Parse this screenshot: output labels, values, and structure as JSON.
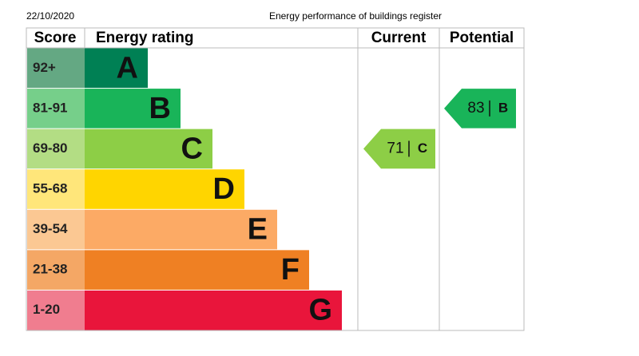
{
  "header": {
    "date": "22/10/2020",
    "title": "Energy performance of buildings register"
  },
  "table": {
    "columns": [
      "Score",
      "Energy rating",
      "Current",
      "Potential"
    ],
    "bands": [
      {
        "score": "92+",
        "rating": "A",
        "color": "#008054",
        "score_color": "#64a883"
      },
      {
        "score": "81-91",
        "rating": "B",
        "color": "#19b459",
        "score_color": "#76cf8a"
      },
      {
        "score": "69-80",
        "rating": "C",
        "color": "#8dce46",
        "score_color": "#b3dd84"
      },
      {
        "score": "55-68",
        "rating": "D",
        "color": "#ffd500",
        "score_color": "#ffe67a"
      },
      {
        "score": "39-54",
        "rating": "E",
        "color": "#fcaa65",
        "score_color": "#fbc893"
      },
      {
        "score": "21-38",
        "rating": "F",
        "color": "#ef8023",
        "score_color": "#f4a765"
      },
      {
        "score": "1-20",
        "rating": "G",
        "color": "#e9153b",
        "score_color": "#f07d8f"
      }
    ]
  },
  "current": {
    "score": "71",
    "rating": "C"
  },
  "potential": {
    "score": "83",
    "rating": "B"
  }
}
